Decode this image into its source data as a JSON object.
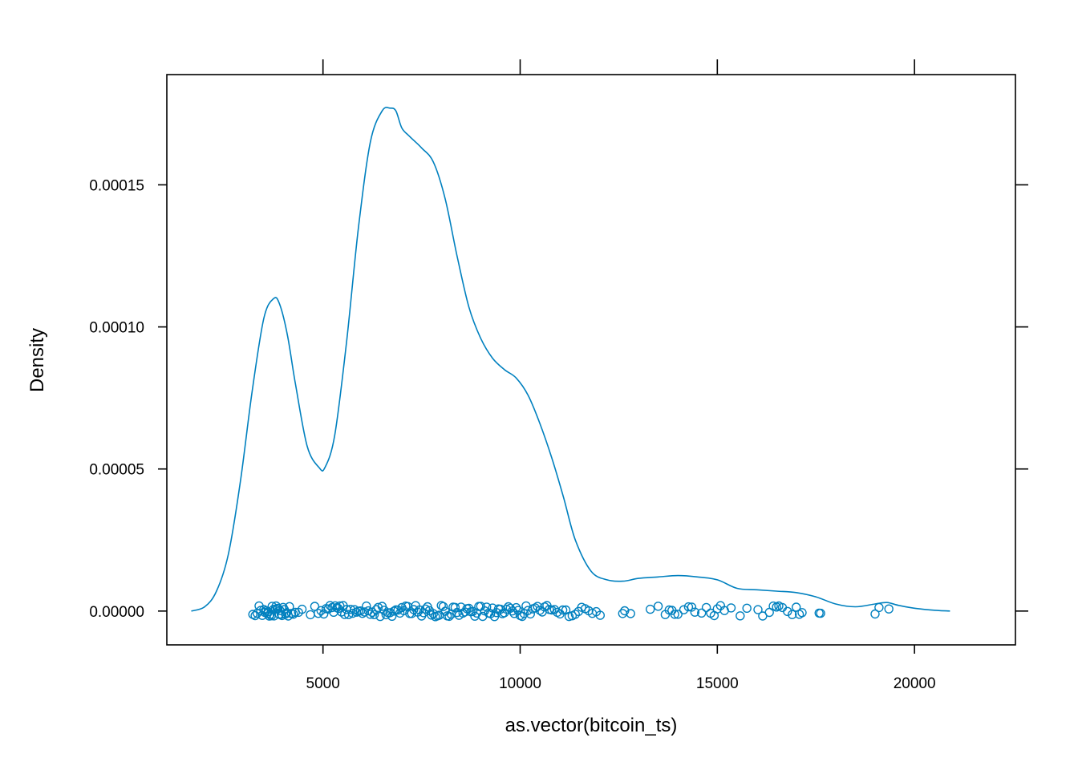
{
  "chart_data": {
    "type": "density",
    "xlabel": "as.vector(bitcoin_ts)",
    "ylabel": "Density",
    "xlim": [
      1040,
      22560
    ],
    "ylim": [
      -1.19e-05,
      0.0001888
    ],
    "x_ticks": [
      5000,
      10000,
      15000,
      20000
    ],
    "x_tick_labels": [
      "5000",
      "10000",
      "15000",
      "20000"
    ],
    "y_ticks": [
      0,
      5e-05,
      0.0001,
      0.00015
    ],
    "y_tick_labels": [
      "0.00000",
      "0.00005",
      "0.00010",
      "0.00015"
    ],
    "line_color": "#0080BF",
    "series": [
      {
        "x": [
          1660,
          2000,
          2300,
          2600,
          2900,
          3200,
          3500,
          3750,
          3900,
          4100,
          4300,
          4600,
          4900,
          5050,
          5300,
          5600,
          5900,
          6200,
          6500,
          6700,
          6850,
          7000,
          7200,
          7500,
          7800,
          8100,
          8400,
          8700,
          9000,
          9300,
          9600,
          9900,
          10200,
          10500,
          10800,
          11100,
          11400,
          11800,
          12200,
          12600,
          13000,
          13500,
          14000,
          14500,
          15000,
          15500,
          16000,
          16500,
          17000,
          17500,
          18000,
          18500,
          19000,
          19300,
          19600,
          20000,
          20500,
          20900
        ],
        "y": [
          0.0,
          1.5e-06,
          7e-06,
          2e-05,
          4.5e-05,
          7.7e-05,
          0.000103,
          0.00011,
          0.000108,
          9.7e-05,
          8e-05,
          5.8e-05,
          5.05e-05,
          5.05e-05,
          6.2e-05,
          9.5e-05,
          0.000135,
          0.000165,
          0.000176,
          0.000177,
          0.000176,
          0.00017,
          0.000167,
          0.000163,
          0.000158,
          0.000145,
          0.000125,
          0.000107,
          9.6e-05,
          8.9e-05,
          8.5e-05,
          8.2e-05,
          7.6e-05,
          6.6e-05,
          5.4e-05,
          4e-05,
          2.5e-05,
          1.4e-05,
          1.1e-05,
          1.05e-05,
          1.15e-05,
          1.2e-05,
          1.25e-05,
          1.2e-05,
          1.1e-05,
          8e-06,
          7.5e-06,
          7e-06,
          6.5e-06,
          5e-06,
          2.5e-06,
          1.5e-06,
          2.5e-06,
          3e-06,
          2e-06,
          1e-06,
          3e-07,
          0.0
        ]
      }
    ],
    "rug_points": [
      3220,
      3280,
      3330,
      3380,
      3420,
      3460,
      3500,
      3530,
      3560,
      3590,
      3610,
      3640,
      3660,
      3690,
      3710,
      3740,
      3760,
      3790,
      3810,
      3840,
      3860,
      3890,
      3910,
      3940,
      3960,
      3990,
      4020,
      4050,
      4080,
      4120,
      4150,
      4200,
      4250,
      4300,
      4380,
      4470,
      4680,
      4790,
      4880,
      4950,
      5020,
      5080,
      5130,
      5180,
      5230,
      5270,
      5310,
      5350,
      5390,
      5430,
      5470,
      5510,
      5550,
      5600,
      5650,
      5700,
      5750,
      5800,
      5850,
      5900,
      5950,
      6000,
      6050,
      6100,
      6150,
      6200,
      6250,
      6300,
      6350,
      6400,
      6450,
      6500,
      6550,
      6600,
      6650,
      6700,
      6750,
      6800,
      6850,
      6900,
      6950,
      7000,
      7050,
      7100,
      7150,
      7200,
      7250,
      7300,
      7350,
      7400,
      7450,
      7500,
      7550,
      7600,
      7650,
      7700,
      7750,
      7800,
      7850,
      7900,
      7950,
      8000,
      8050,
      8100,
      8150,
      8200,
      8250,
      8300,
      8350,
      8400,
      8450,
      8500,
      8550,
      8600,
      8650,
      8700,
      8750,
      8800,
      8850,
      8900,
      8950,
      9000,
      9050,
      9100,
      9150,
      9200,
      9250,
      9300,
      9350,
      9400,
      9450,
      9500,
      9550,
      9600,
      9650,
      9700,
      9750,
      9800,
      9850,
      9900,
      9950,
      10000,
      10050,
      10100,
      10150,
      10200,
      10260,
      10320,
      10380,
      10440,
      10500,
      10560,
      10620,
      10680,
      10740,
      10800,
      10870,
      10940,
      11010,
      11080,
      11160,
      11240,
      11320,
      11400,
      11480,
      11560,
      11650,
      11740,
      11830,
      11930,
      12030,
      12600,
      12650,
      12800,
      13300,
      13500,
      13680,
      13780,
      13850,
      13920,
      14000,
      14150,
      14270,
      14350,
      14430,
      14600,
      14720,
      14830,
      14920,
      15000,
      15080,
      15180,
      15350,
      15580,
      15750,
      16030,
      16150,
      16320,
      16420,
      16500,
      16560,
      16650,
      16780,
      16900,
      17000,
      17080,
      17150,
      17580,
      17620,
      19000,
      19100,
      19350
    ]
  }
}
